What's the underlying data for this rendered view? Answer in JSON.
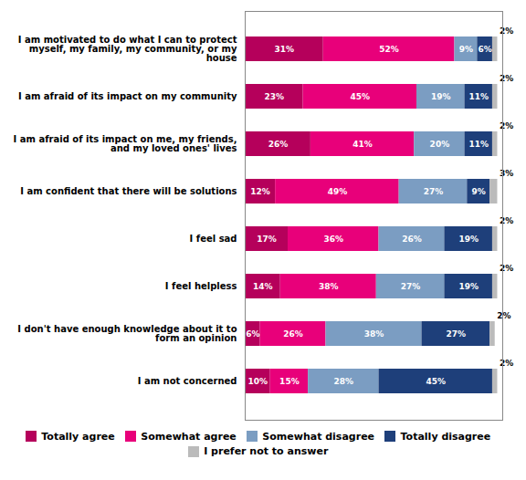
{
  "chart_data": {
    "type": "bar",
    "orientation": "horizontal",
    "stacked": true,
    "data_labels": true,
    "tick_labels": "y",
    "legend": "bottom",
    "categories": [
      "I am motivated to do what I can to protect\nmyself, my family, my community, or my\nhouse",
      "I am afraid of its impact on my community",
      "I am afraid of its impact on me, my friends,\nand my loved ones' lives",
      "I am confident that there will be solutions",
      "I feel sad",
      "I feel helpless",
      "I don't have enough knowledge about it to\nform an opinion",
      "I am not concerned"
    ],
    "xlim": [
      0,
      102
    ],
    "series": [
      {
        "name": "Totally agree",
        "color": "#B5005B",
        "values": [
          31,
          23,
          26,
          12,
          17,
          14,
          6,
          10
        ],
        "value_labels": [
          "31%",
          "23%",
          "26%",
          "12%",
          "17%",
          "14%",
          "6%",
          "10%"
        ]
      },
      {
        "name": "Somewhat agree",
        "color": "#E8007A",
        "values": [
          52,
          45,
          41,
          49,
          36,
          38,
          26,
          15
        ],
        "value_labels": [
          "52%",
          "45%",
          "41%",
          "49%",
          "36%",
          "38%",
          "26%",
          "15%"
        ]
      },
      {
        "name": "Somewhat disagree",
        "color": "#7B9DC2",
        "values": [
          9,
          19,
          20,
          27,
          26,
          27,
          38,
          28
        ],
        "value_labels": [
          "9%",
          "19%",
          "20%",
          "27%",
          "26%",
          "27%",
          "38%",
          "28%"
        ]
      },
      {
        "name": "Totally disagree",
        "color": "#1E3F7A",
        "values": [
          6,
          11,
          11,
          9,
          19,
          19,
          27,
          45
        ],
        "value_labels": [
          "6%",
          "11%",
          "11%",
          "9%",
          "19%",
          "19%",
          "27%",
          "45%"
        ]
      },
      {
        "name": "I prefer not to answer",
        "color": "#BBBBBB",
        "values": [
          2,
          2,
          2,
          3,
          2,
          2,
          2,
          2
        ],
        "value_labels": [
          "2%",
          "2%",
          "2%",
          "3%",
          "2%",
          "2%",
          "2%",
          "2%"
        ]
      }
    ]
  }
}
